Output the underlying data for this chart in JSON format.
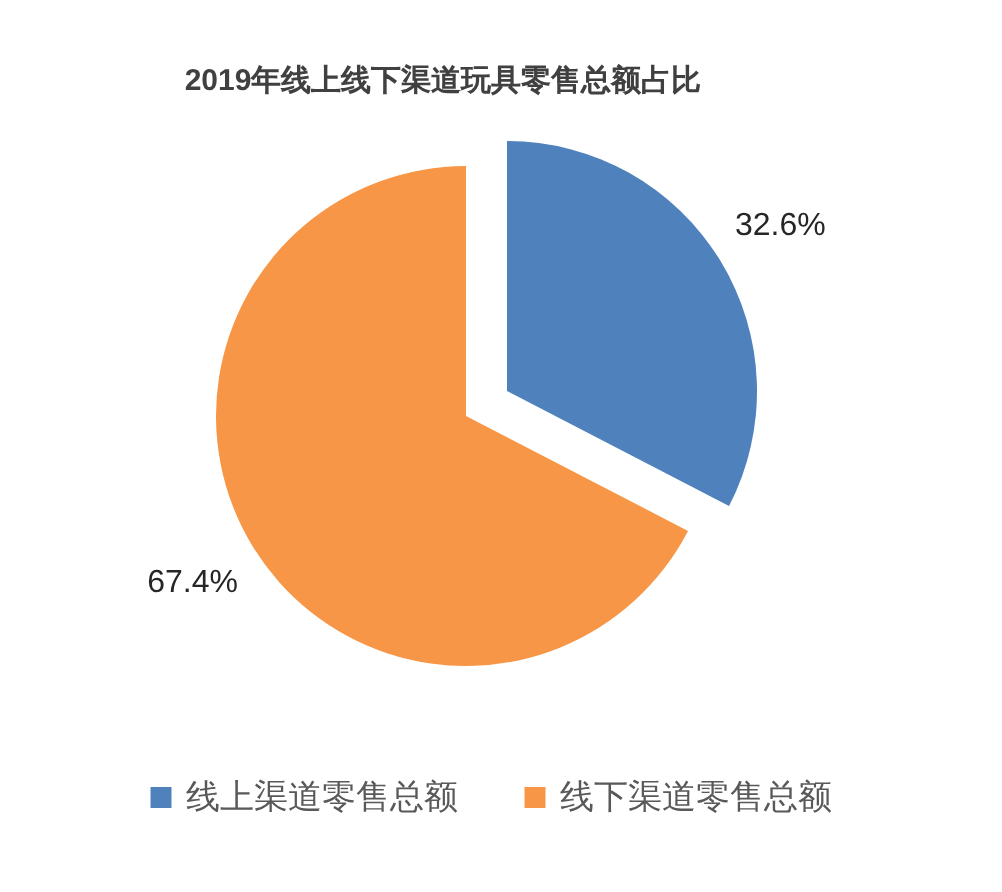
{
  "chart_data": {
    "type": "pie",
    "title": "2019年线上线下渠道玩具零售总额占比",
    "categories": [
      "线上渠道零售总额",
      "线下渠道零售总额"
    ],
    "values": [
      32.6,
      67.4
    ],
    "value_labels": [
      "32.6%",
      "67.4%"
    ],
    "colors": [
      "#4f81bd",
      "#f79646"
    ],
    "legend": "bottom"
  }
}
